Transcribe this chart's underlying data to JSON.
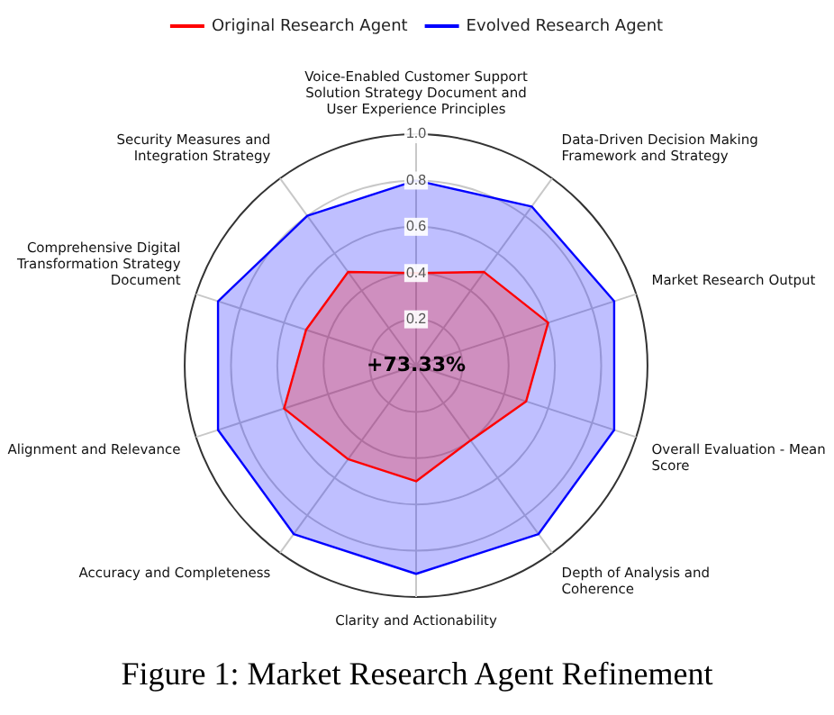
{
  "chart_data": {
    "type": "radar",
    "title": "Figure 1: Market Research Agent Refinement",
    "categories": [
      "Voice-Enabled Customer Support Solution Strategy Document and User Experience Principles",
      "Data-Driven Decision Making Framework and Strategy",
      "Market Research Output",
      "Overall Evaluation - Mean Score",
      "Depth of Analysis and Coherence",
      "Clarity and Actionability",
      "Accuracy and Completeness",
      "Alignment and Relevance",
      "Comprehensive Digital Transformation Strategy Document",
      "Security Measures and Integration Strategy"
    ],
    "series": [
      {
        "name": "Original Research Agent",
        "color": "#ff0000",
        "values": [
          0.4,
          0.5,
          0.6,
          0.5,
          0.4,
          0.5,
          0.5,
          0.6,
          0.5,
          0.5
        ]
      },
      {
        "name": "Evolved Research Agent",
        "color": "#0000ff",
        "values": [
          0.8,
          0.85,
          0.9,
          0.9,
          0.9,
          0.9,
          0.9,
          0.9,
          0.9,
          0.8
        ]
      }
    ],
    "ylim": [
      0,
      1
    ],
    "yticks": [
      0.2,
      0.4,
      0.6,
      0.8,
      {
        "value": 1,
        "label": "1.0"
      }
    ],
    "grid": true,
    "legend": "top",
    "marker": "none",
    "annotations": [
      "+73.33%"
    ]
  }
}
